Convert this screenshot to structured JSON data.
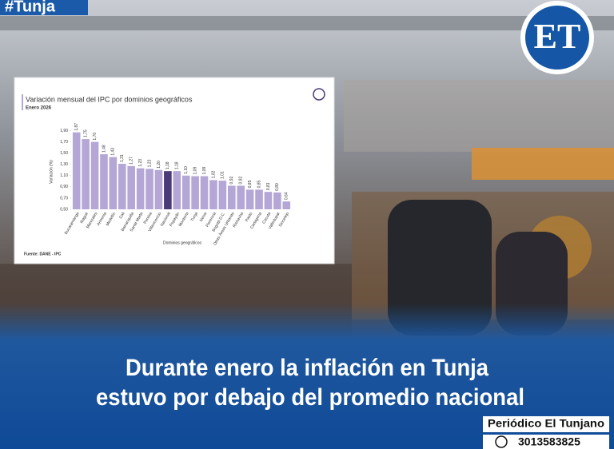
{
  "tag": "#Tunja",
  "logo": "ET",
  "headline": [
    "Durante enero la inflación en Tunja",
    "estuvo por debajo del promedio nacional"
  ],
  "footer": {
    "outlet": "Periódico El Tunjano",
    "phone": "3013583825"
  },
  "chart_data": {
    "type": "bar",
    "title": "Variación mensual del IPC por dominios geográficos",
    "subtitle": "Enero 2026",
    "y_label": "Variación (%)",
    "x_label": "Dominios geográficos",
    "source": "Fuente: DANE - IPC",
    "categories": [
      "Bucaramanga",
      "Ibagué",
      "Manizales",
      "Armenia",
      "Medellín",
      "Cali",
      "Barranquilla",
      "Santa Marta",
      "Pereira",
      "Villavicencio",
      "Nacional",
      "Popayán",
      "Montería",
      "Tunja",
      "Neiva",
      "Florencia",
      "Bogotá D.C.",
      "Otras Áreas Urbanas",
      "Riohacha",
      "Pasto",
      "Cartagena",
      "Cúcuta",
      "Valledupar",
      "Sincelejo"
    ],
    "values": [
      1.87,
      1.75,
      1.7,
      1.48,
      1.43,
      1.31,
      1.27,
      1.23,
      1.22,
      1.2,
      1.18,
      1.18,
      1.1,
      1.09,
      1.09,
      1.02,
      1.01,
      0.92,
      0.92,
      0.85,
      0.85,
      0.81,
      0.8,
      0.64
    ],
    "value_labels": [
      "1,87",
      "1,75",
      "1,70",
      "1,48",
      "1,43",
      "1,31",
      "1,27",
      "1,23",
      "1,22",
      "1,20",
      "1,18",
      "1,18",
      "1,10",
      "1,09",
      "1,09",
      "1,02",
      "1,01",
      "0,92",
      "0,92",
      "0,85",
      "0,85",
      "0,81",
      "0,80",
      "0,64"
    ],
    "colors": [
      "#b4a7d6",
      "#b4a7d6",
      "#b4a7d6",
      "#b4a7d6",
      "#b4a7d6",
      "#b4a7d6",
      "#b4a7d6",
      "#b4a7d6",
      "#b4a7d6",
      "#b4a7d6",
      "#4b3a78",
      "#b4a7d6",
      "#b4a7d6",
      "#b4a7d6",
      "#b4a7d6",
      "#b4a7d6",
      "#b4a7d6",
      "#b4a7d6",
      "#b4a7d6",
      "#b4a7d6",
      "#b4a7d6",
      "#b4a7d6",
      "#b4a7d6",
      "#b4a7d6"
    ],
    "ylim": [
      0.5,
      1.95
    ],
    "yticks": [
      {
        "value": 0.5,
        "label": "0,50"
      },
      {
        "value": 0.7,
        "label": "0,70"
      },
      {
        "value": 0.9,
        "label": "0,90"
      },
      {
        "value": 1.1,
        "label": "1,10"
      },
      {
        "value": 1.3,
        "label": "1,30"
      },
      {
        "value": 1.5,
        "label": "1,50"
      },
      {
        "value": 1.7,
        "label": "1,70"
      },
      {
        "value": 1.9,
        "label": "1,90"
      }
    ],
    "grid": false
  }
}
